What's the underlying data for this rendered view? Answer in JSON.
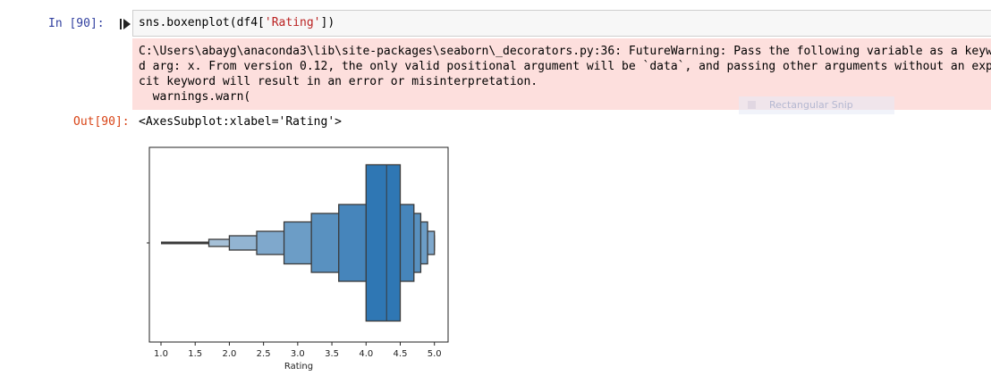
{
  "cell": {
    "in_prompt": "In [90]:",
    "run_icon": "play-step-icon",
    "code_prefix": "sns.boxenplot(df4[",
    "code_string": "'Rating'",
    "code_suffix": "])",
    "stderr_lines": [
      "C:\\Users\\abayg\\anaconda3\\lib\\site-packages\\seaborn\\_decorators.py:36: FutureWarning: Pass the following variable as a keywor",
      "d arg: x. From version 0.12, the only valid positional argument will be `data`, and passing other arguments without an expli",
      "cit keyword will result in an error or misinterpretation.",
      "  warnings.warn("
    ],
    "out_prompt": "Out[90]:",
    "out_text": "<AxesSubplot:xlabel='Rating'>"
  },
  "overlay": {
    "label": "Rectangular Snip"
  },
  "colors": {
    "box_fill": "#2f77b4",
    "box_edge": "#3a3a3a",
    "in_prompt": "#303f9f",
    "out_prompt": "#d84315",
    "stderr_bg": "#fddfdd"
  },
  "chart_data": {
    "type": "boxen",
    "title": "",
    "xlabel": "Rating",
    "ylabel": "",
    "xlim": [
      0.83,
      5.2
    ],
    "xticks": [
      1.0,
      1.5,
      2.0,
      2.5,
      3.0,
      3.5,
      4.0,
      4.5,
      5.0
    ],
    "xtick_labels": [
      "1.0",
      "1.5",
      "2.0",
      "2.5",
      "3.0",
      "3.5",
      "4.0",
      "4.5",
      "5.0"
    ],
    "median": 4.3,
    "levels": [
      {
        "low": 4.0,
        "high": 4.5,
        "shade": 1.0
      },
      {
        "low": 3.6,
        "high": 4.7,
        "shade": 0.88
      },
      {
        "low": 3.2,
        "high": 4.8,
        "shade": 0.78
      },
      {
        "low": 2.8,
        "high": 4.9,
        "shade": 0.68
      },
      {
        "low": 2.4,
        "high": 5.0,
        "shade": 0.58
      },
      {
        "low": 2.0,
        "high": 5.0,
        "shade": 0.48
      },
      {
        "low": 1.7,
        "high": 5.0,
        "shade": 0.38
      }
    ],
    "whisker_min": 1.0,
    "whisker_max": 1.7
  }
}
